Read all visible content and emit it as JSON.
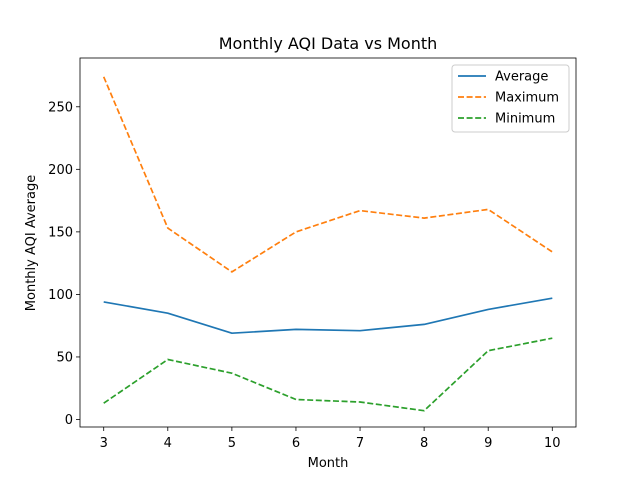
{
  "chart_data": {
    "type": "line",
    "title": "Monthly AQI Data vs Month",
    "xlabel": "Month",
    "ylabel": "Monthly AQI Average",
    "x": [
      3,
      4,
      5,
      6,
      7,
      8,
      9,
      10
    ],
    "xticks": [
      "3",
      "4",
      "5",
      "6",
      "7",
      "8",
      "9",
      "10"
    ],
    "yticks": [
      "0",
      "50",
      "100",
      "150",
      "200",
      "250"
    ],
    "xlim": [
      2.63,
      10.37
    ],
    "ylim": [
      -6,
      289
    ],
    "grid": false,
    "legend_position": "top-right",
    "series": [
      {
        "name": "Average",
        "values": [
          94,
          85,
          69,
          72,
          71,
          76,
          88,
          97
        ],
        "color": "#1f77b4",
        "style": "solid"
      },
      {
        "name": "Maximum",
        "values": [
          274,
          153,
          118,
          150,
          167,
          161,
          168,
          134
        ],
        "color": "#ff7f0e",
        "style": "dashed"
      },
      {
        "name": "Minimum",
        "values": [
          13,
          48,
          37,
          16,
          14,
          7,
          55,
          65
        ],
        "color": "#2ca02c",
        "style": "dashed"
      }
    ]
  }
}
